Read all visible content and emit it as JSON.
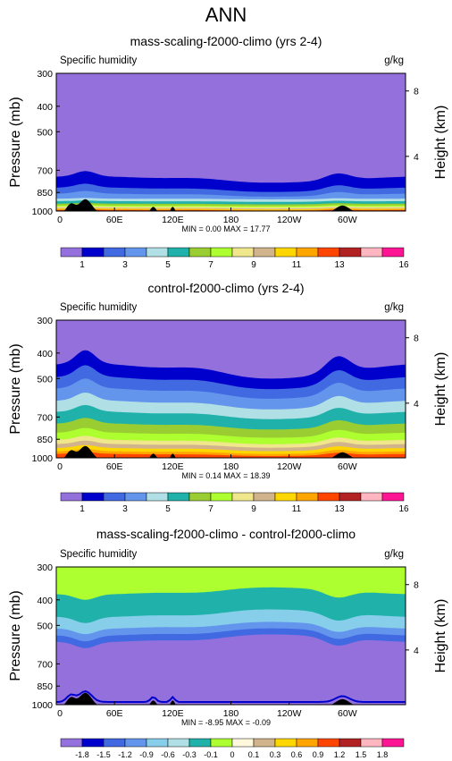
{
  "title": "ANN",
  "panels": [
    {
      "title": "mass-scaling-f2000-climo (yrs 2-4)",
      "variable": "Specific humidity",
      "units": "g/kg",
      "ylabel_left": "Pressure (mb)",
      "ylabel_right": "Height (km)",
      "minmax": "MIN =  0.00  MAX =  17.77",
      "colorbar_labels": [
        "1",
        "3",
        "5",
        "7",
        "9",
        "11",
        "13",
        "16"
      ]
    },
    {
      "title": "control-f2000-climo (yrs 2-4)",
      "variable": "Specific humidity",
      "units": "g/kg",
      "ylabel_left": "Pressure (mb)",
      "ylabel_right": "Height (km)",
      "minmax": "MIN =  0.14  MAX =  18.39",
      "colorbar_labels": [
        "1",
        "3",
        "5",
        "7",
        "9",
        "11",
        "13",
        "16"
      ]
    },
    {
      "title": "mass-scaling-f2000-climo - control-f2000-climo",
      "variable": "Specific humidity",
      "units": "g/kg",
      "ylabel_left": "Pressure (mb)",
      "ylabel_right": "Height (km)",
      "minmax": "MIN = -8.95  MAX = -0.09",
      "colorbar_labels": [
        "-1.8",
        "-1.5",
        "-1.2",
        "-0.9",
        "-0.6",
        "-0.3",
        "-0.1",
        "0",
        "0.1",
        "0.3",
        "0.6",
        "0.9",
        "1.2",
        "1.5",
        "1.8"
      ]
    }
  ],
  "chart_data": [
    {
      "type": "heatmap",
      "title": "mass-scaling-f2000-climo (yrs 2-4)",
      "variable": "Specific humidity",
      "units": "g/kg",
      "ylabel": "Pressure (mb)",
      "ylabel_right": "Height (km)",
      "x_ticks": [
        "0",
        "60E",
        "120E",
        "180",
        "120W",
        "60W"
      ],
      "y_ticks": [
        "300",
        "400",
        "500",
        "700",
        "850",
        "1000"
      ],
      "y_scale": "log",
      "ylim": [
        1000,
        300
      ],
      "right_ticks": [
        "8",
        "4"
      ],
      "min": 0.0,
      "max": 17.77,
      "colorbar_labels": [
        "1",
        "3",
        "5",
        "7",
        "9",
        "11",
        "13",
        "16"
      ],
      "colorbar_colors": [
        "#9370DB",
        "#0000CD",
        "#4169E1",
        "#6495ED",
        "#B0E0E6",
        "#20B2AA",
        "#9ACD32",
        "#ADFF2F",
        "#F0E68C",
        "#D2B48C",
        "#FFD700",
        "#FFA500",
        "#FF4500",
        "#B22222",
        "#FFB6C1",
        "#FF1493"
      ]
    },
    {
      "type": "heatmap",
      "title": "control-f2000-climo (yrs 2-4)",
      "variable": "Specific humidity",
      "units": "g/kg",
      "ylabel": "Pressure (mb)",
      "ylabel_right": "Height (km)",
      "x_ticks": [
        "0",
        "60E",
        "120E",
        "180",
        "120W",
        "60W"
      ],
      "y_ticks": [
        "300",
        "400",
        "500",
        "700",
        "850",
        "1000"
      ],
      "y_scale": "log",
      "ylim": [
        1000,
        300
      ],
      "right_ticks": [
        "8",
        "4"
      ],
      "min": 0.14,
      "max": 18.39,
      "colorbar_labels": [
        "1",
        "3",
        "5",
        "7",
        "9",
        "11",
        "13",
        "16"
      ],
      "colorbar_colors": [
        "#9370DB",
        "#0000CD",
        "#4169E1",
        "#6495ED",
        "#B0E0E6",
        "#20B2AA",
        "#9ACD32",
        "#ADFF2F",
        "#F0E68C",
        "#D2B48C",
        "#FFD700",
        "#FFA500",
        "#FF4500",
        "#B22222",
        "#FFB6C1",
        "#FF1493"
      ]
    },
    {
      "type": "heatmap",
      "title": "mass-scaling-f2000-climo - control-f2000-climo",
      "variable": "Specific humidity",
      "units": "g/kg",
      "ylabel": "Pressure (mb)",
      "ylabel_right": "Height (km)",
      "x_ticks": [
        "0",
        "60E",
        "120E",
        "180",
        "120W",
        "60W"
      ],
      "y_ticks": [
        "300",
        "400",
        "500",
        "700",
        "850",
        "1000"
      ],
      "y_scale": "log",
      "ylim": [
        1000,
        300
      ],
      "right_ticks": [
        "8",
        "4"
      ],
      "min": -8.95,
      "max": -0.09,
      "colorbar_labels": [
        "-1.8",
        "-1.5",
        "-1.2",
        "-0.9",
        "-0.6",
        "-0.3",
        "-0.1",
        "0",
        "0.1",
        "0.3",
        "0.6",
        "0.9",
        "1.2",
        "1.5",
        "1.8"
      ],
      "colorbar_colors": [
        "#9370DB",
        "#0000CD",
        "#4169E1",
        "#6495ED",
        "#87CEEB",
        "#B0E0E6",
        "#20B2AA",
        "#ADFF2F",
        "#FFF8DC",
        "#D2B48C",
        "#FFD700",
        "#FFA500",
        "#FF4500",
        "#B22222",
        "#FFB6C1",
        "#FF1493"
      ]
    }
  ]
}
